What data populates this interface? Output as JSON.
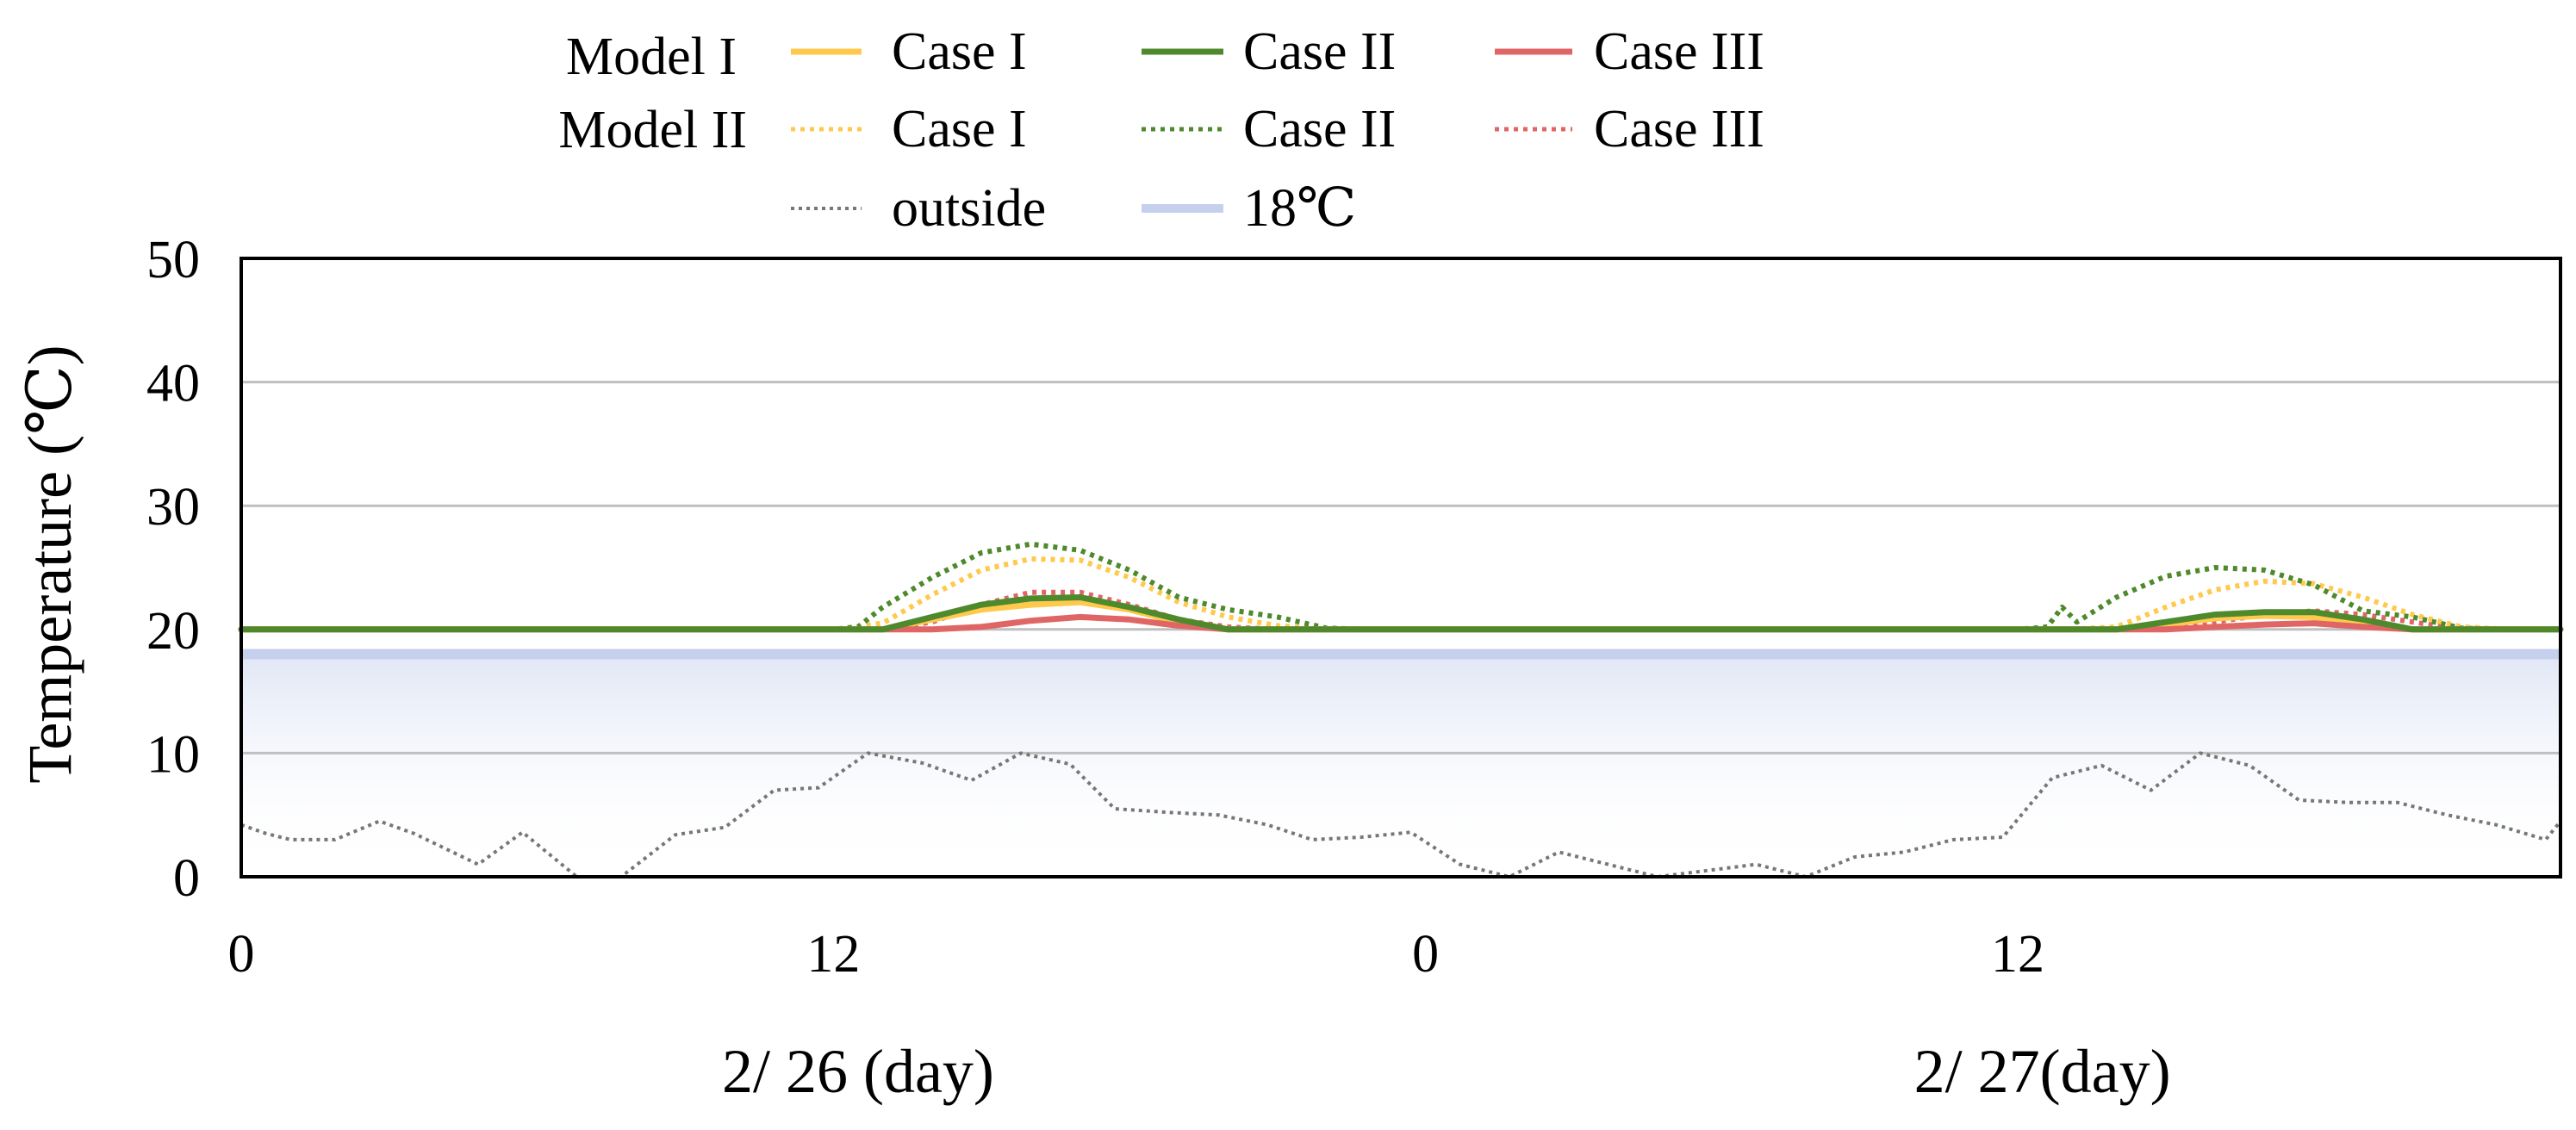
{
  "chart_data": {
    "type": "line",
    "ylabel": "Temperature (℃)",
    "ylim": [
      0,
      50
    ],
    "y_ticks": [
      "0",
      "10",
      "20",
      "30",
      "40",
      "50"
    ],
    "xlim": [
      0,
      47
    ],
    "x_ticks": [
      {
        "hour": 0,
        "label": "0"
      },
      {
        "hour": 12,
        "label": "12"
      },
      {
        "hour": 24,
        "label": "0"
      },
      {
        "hour": 36,
        "label": "12"
      }
    ],
    "day_labels": [
      {
        "center_hour": 12.5,
        "label": "2/ 26 (day)"
      },
      {
        "center_hour": 36.5,
        "label": "2/ 27(day)"
      }
    ],
    "grid": true,
    "legend_rows": [
      {
        "label": "Model I",
        "names": [
          "Case I",
          "Case II",
          "Case III"
        ]
      },
      {
        "label": "Model II",
        "names": [
          "Case I",
          "Case II",
          "Case III"
        ]
      },
      {
        "label": "",
        "names": [
          "outside",
          "18℃"
        ]
      }
    ],
    "colors": {
      "case1": "#ffc94d",
      "case2": "#4e8a2c",
      "case3": "#e06666",
      "outside": "#777777",
      "threshold": "#c5d0ec"
    },
    "threshold": {
      "name": "18℃",
      "value": 18
    },
    "series": [
      {
        "name": "Model I Case I",
        "model": "Model I",
        "case": "Case I",
        "style": "solid",
        "x": [
          0,
          12,
          13,
          14,
          15,
          16,
          17,
          18,
          19,
          20,
          21,
          22,
          23,
          24,
          36,
          37,
          38,
          39,
          40,
          41,
          42,
          43,
          44,
          45,
          46,
          47
        ],
        "y": [
          20,
          20,
          20,
          20.8,
          21.6,
          22.0,
          22.2,
          21.6,
          20.6,
          20,
          20,
          20,
          20,
          20,
          20,
          20,
          20,
          20.4,
          20.9,
          21.1,
          21.0,
          20.5,
          20,
          20,
          20,
          20
        ]
      },
      {
        "name": "Model I Case II",
        "model": "Model I",
        "case": "Case II",
        "style": "solid",
        "x": [
          0,
          12,
          13,
          14,
          15,
          16,
          17,
          18,
          19,
          20,
          21,
          22,
          23,
          24,
          36,
          37,
          38,
          39,
          40,
          41,
          42,
          43,
          44,
          45,
          46,
          47
        ],
        "y": [
          20,
          20,
          20,
          21.0,
          22.0,
          22.5,
          22.6,
          21.8,
          20.8,
          20,
          20,
          20,
          20,
          20,
          20,
          20,
          20,
          20.6,
          21.2,
          21.4,
          21.4,
          20.8,
          20,
          20,
          20,
          20
        ]
      },
      {
        "name": "Model I Case III",
        "model": "Model I",
        "case": "Case III",
        "style": "solid",
        "x": [
          0,
          12,
          13,
          14,
          15,
          16,
          17,
          18,
          19,
          20,
          21,
          22,
          23,
          24,
          36,
          37,
          38,
          39,
          40,
          41,
          42,
          43,
          44,
          45,
          46,
          47
        ],
        "y": [
          20,
          20,
          20,
          20,
          20.2,
          20.7,
          21.0,
          20.8,
          20.3,
          20,
          20,
          20,
          20,
          20,
          20,
          20,
          20,
          20,
          20.2,
          20.4,
          20.5,
          20.2,
          20,
          20,
          20,
          20
        ]
      },
      {
        "name": "Model II Case I",
        "model": "Model II",
        "case": "Case I",
        "style": "dotted",
        "x": [
          0,
          12,
          13,
          14,
          15,
          16,
          17,
          18,
          19,
          20,
          21,
          22,
          23,
          24,
          36,
          37,
          38,
          39,
          40,
          41,
          42,
          43,
          44,
          45,
          46,
          47
        ],
        "y": [
          20,
          20,
          20.5,
          22.8,
          24.8,
          25.7,
          25.6,
          24.2,
          22.2,
          21.0,
          20.3,
          20,
          20,
          20,
          20,
          20,
          20.2,
          21.8,
          23.2,
          23.9,
          23.7,
          22.6,
          21.2,
          20.2,
          20,
          20
        ]
      },
      {
        "name": "Model II Case II",
        "model": "Model II",
        "case": "Case II",
        "style": "dotted",
        "x": [
          0,
          12,
          12.5,
          13,
          14,
          15,
          16,
          17,
          18,
          19,
          20,
          21,
          22,
          23,
          24,
          36,
          36.6,
          36.9,
          37.2,
          38,
          39,
          40,
          41,
          42,
          43,
          44,
          45,
          46,
          47
        ],
        "y": [
          20,
          20,
          20.2,
          21.8,
          24.2,
          26.2,
          26.9,
          26.4,
          24.8,
          22.6,
          21.6,
          21.0,
          20.1,
          20,
          20,
          20,
          20.2,
          21.8,
          20.6,
          22.6,
          24.3,
          25.0,
          24.8,
          23.6,
          21.5,
          21.0,
          20.1,
          20,
          20
        ]
      },
      {
        "name": "Model II Case III",
        "model": "Model II",
        "case": "Case III",
        "style": "dotted",
        "x": [
          0,
          12,
          13,
          14,
          15,
          16,
          17,
          18,
          19,
          20,
          21,
          22,
          23,
          24,
          36,
          37,
          38,
          39,
          40,
          41,
          42,
          43,
          44,
          45,
          46,
          47
        ],
        "y": [
          20,
          20,
          20,
          20.6,
          22.0,
          23.0,
          23.0,
          22.0,
          20.8,
          20.2,
          20,
          20,
          20,
          20,
          20,
          20,
          20,
          20,
          20.6,
          21.2,
          21.5,
          21.2,
          20.6,
          20,
          20,
          20
        ]
      },
      {
        "name": "outside",
        "model": "",
        "case": "outside",
        "style": "dotted",
        "x": [
          0,
          0.5,
          1,
          1.9,
          2.8,
          3.5,
          4.8,
          5.7,
          6.8,
          7.7,
          8.8,
          9.8,
          10.8,
          11.7,
          12.7,
          13.8,
          14.8,
          15.8,
          16.8,
          17.7,
          18.8,
          19.8,
          20.8,
          21.7,
          22.7,
          23.7,
          24.7,
          25.7,
          26.7,
          27.7,
          28.7,
          29.7,
          30.7,
          31.7,
          32.7,
          33.7,
          34.7,
          35.7,
          36.7,
          37.7,
          38.7,
          39.7,
          40.7,
          41.7,
          42.7,
          43.7,
          44.7,
          45.7,
          46.7,
          47
        ],
        "y": [
          4.2,
          3.5,
          3.0,
          3.0,
          4.5,
          3.5,
          1.0,
          3.6,
          0,
          0,
          3.4,
          4.0,
          7.0,
          7.2,
          10.0,
          9.2,
          7.8,
          10.0,
          9.1,
          5.5,
          5.2,
          5.0,
          4.2,
          3.0,
          3.2,
          3.6,
          1.0,
          0,
          2.0,
          1.0,
          0,
          0.5,
          1.0,
          0,
          1.6,
          2.0,
          3.0,
          3.2,
          8.0,
          9.0,
          7.0,
          10.0,
          9.0,
          6.2,
          6.0,
          6.0,
          5.0,
          4.2,
          3.0,
          4.5
        ]
      }
    ]
  }
}
